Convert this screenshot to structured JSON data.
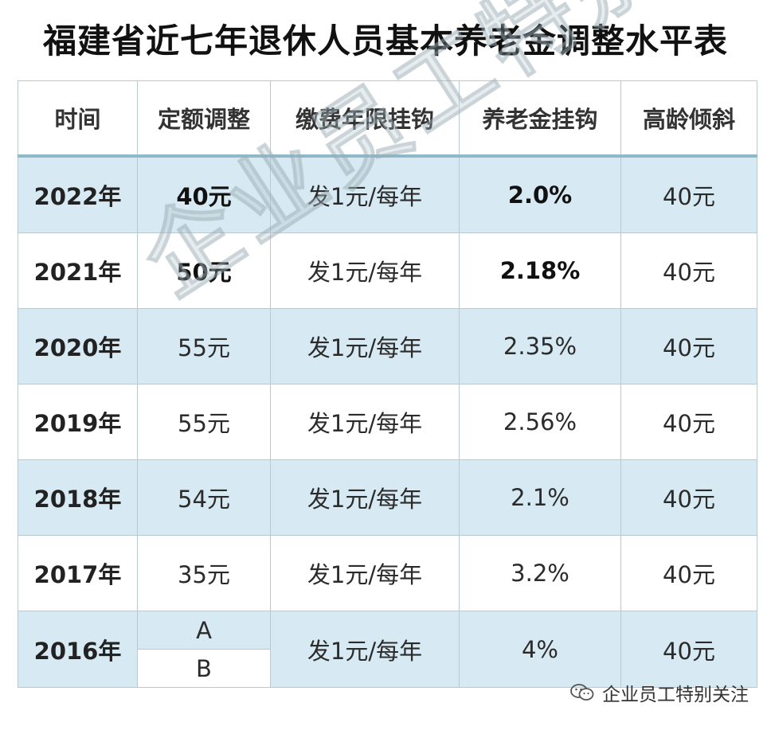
{
  "title": "福建省近七年退休人员基本养老金调整水平表",
  "headers": [
    "时间",
    "定额调整",
    "缴费年限挂钩",
    "养老金挂钩",
    "高龄倾斜"
  ],
  "rows": [
    {
      "year": "2022年",
      "fixed": "40元",
      "years": "发1元/每年",
      "pension": "2.0%",
      "elderly": "40元"
    },
    {
      "year": "2021年",
      "fixed": "50元",
      "years": "发1元/每年",
      "pension": "2.18%",
      "elderly": "40元"
    },
    {
      "year": "2020年",
      "fixed": "55元",
      "years": "发1元/每年",
      "pension": "2.35%",
      "elderly": "40元"
    },
    {
      "year": "2019年",
      "fixed": "55元",
      "years": "发1元/每年",
      "pension": "2.56%",
      "elderly": "40元"
    },
    {
      "year": "2018年",
      "fixed": "54元",
      "years": "发1元/每年",
      "pension": "2.1%",
      "elderly": "40元"
    },
    {
      "year": "2017年",
      "fixed": "35元",
      "years": "发1元/每年",
      "pension": "3.2%",
      "elderly": "40元"
    },
    {
      "year": "2016年",
      "fixed_a": "A",
      "fixed_b": "B",
      "years": "发1元/每年",
      "pension": "4%",
      "elderly": "40元"
    }
  ],
  "watermark": "企业员工特别关注",
  "brand": {
    "name": "企业员工特别关注",
    "icon": "wechat-icon"
  },
  "colors": {
    "shaded_row": "#d7e9f2",
    "header_rule": "#8fb8c9",
    "border": "#b9c9d2"
  }
}
